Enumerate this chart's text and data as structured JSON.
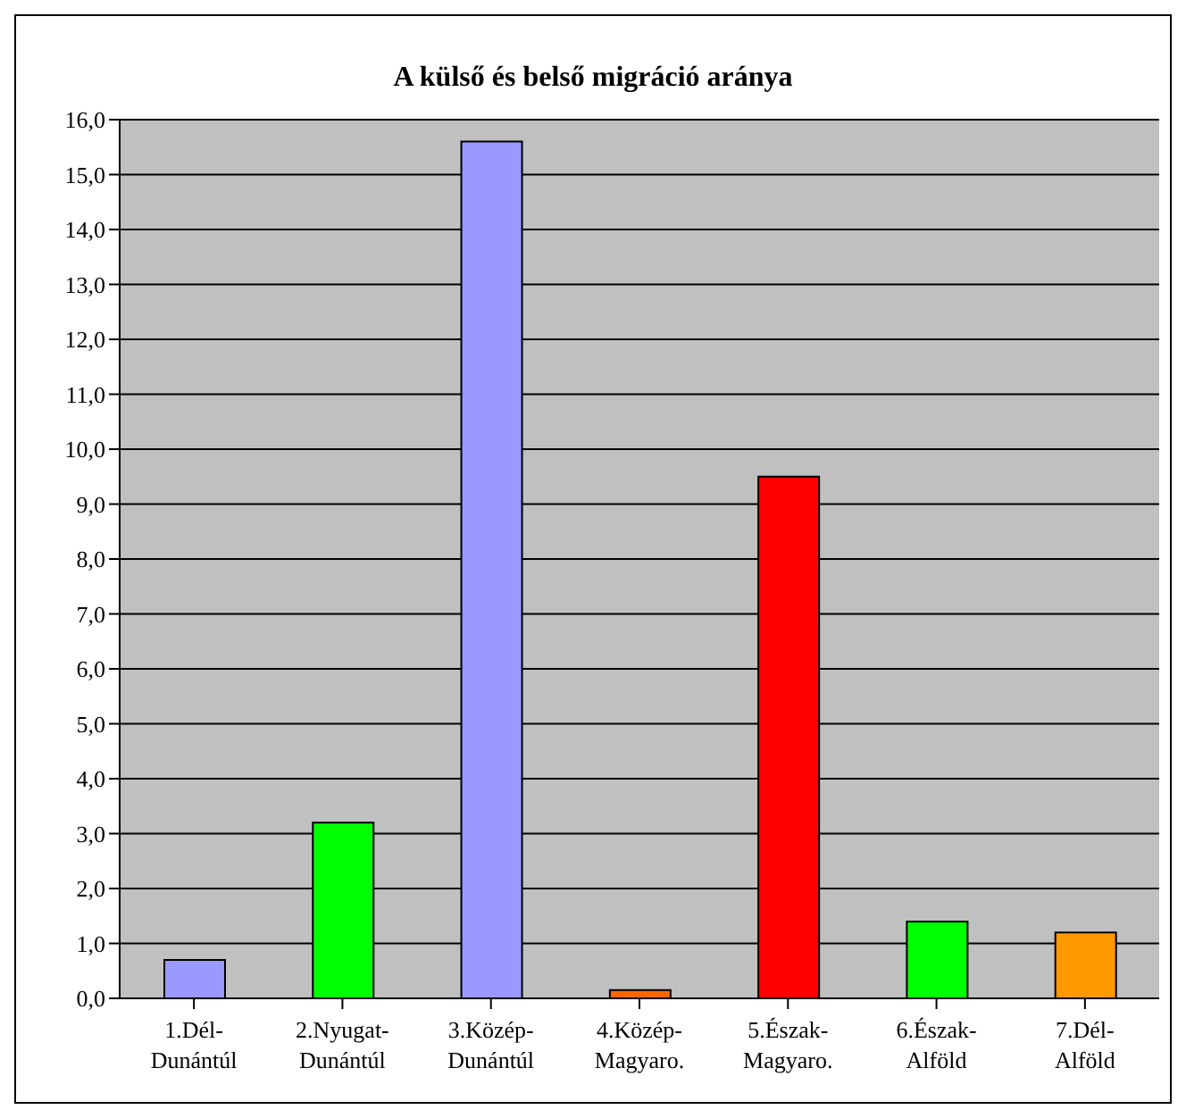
{
  "chart_data": {
    "type": "bar",
    "title": "A külső és belső migráció aránya",
    "categories": [
      "1.Dél-\nDunántúl",
      "2.Nyugat-\nDunántúl",
      "3.Közép-\nDunántúl",
      "4.Közép-\nMagyaro.",
      "5.Észak-\nMagyaro.",
      "6.Észak-\nAlföld",
      "7.Dél-\nAlföld"
    ],
    "values": [
      0.7,
      3.2,
      15.6,
      0.15,
      9.5,
      1.4,
      1.2
    ],
    "colors": [
      "#9999ff",
      "#00ff00",
      "#9999ff",
      "#ff6600",
      "#ff0000",
      "#00ff00",
      "#ff9900"
    ],
    "ylim": [
      0,
      16
    ],
    "yticks": [
      {
        "value": 0,
        "label": "0,0"
      },
      {
        "value": 1,
        "label": "1,0"
      },
      {
        "value": 2,
        "label": "2,0"
      },
      {
        "value": 3,
        "label": "3,0"
      },
      {
        "value": 4,
        "label": "4,0"
      },
      {
        "value": 5,
        "label": "5,0"
      },
      {
        "value": 6,
        "label": "6,0"
      },
      {
        "value": 7,
        "label": "7,0"
      },
      {
        "value": 8,
        "label": "8,0"
      },
      {
        "value": 9,
        "label": "9,0"
      },
      {
        "value": 10,
        "label": "10,0"
      },
      {
        "value": 11,
        "label": "11,0"
      },
      {
        "value": 12,
        "label": "12,0"
      },
      {
        "value": 13,
        "label": "13,0"
      },
      {
        "value": 14,
        "label": "14,0"
      },
      {
        "value": 15,
        "label": "15,0"
      },
      {
        "value": 16,
        "label": "16,0"
      }
    ],
    "grid": "y",
    "legend": false
  }
}
